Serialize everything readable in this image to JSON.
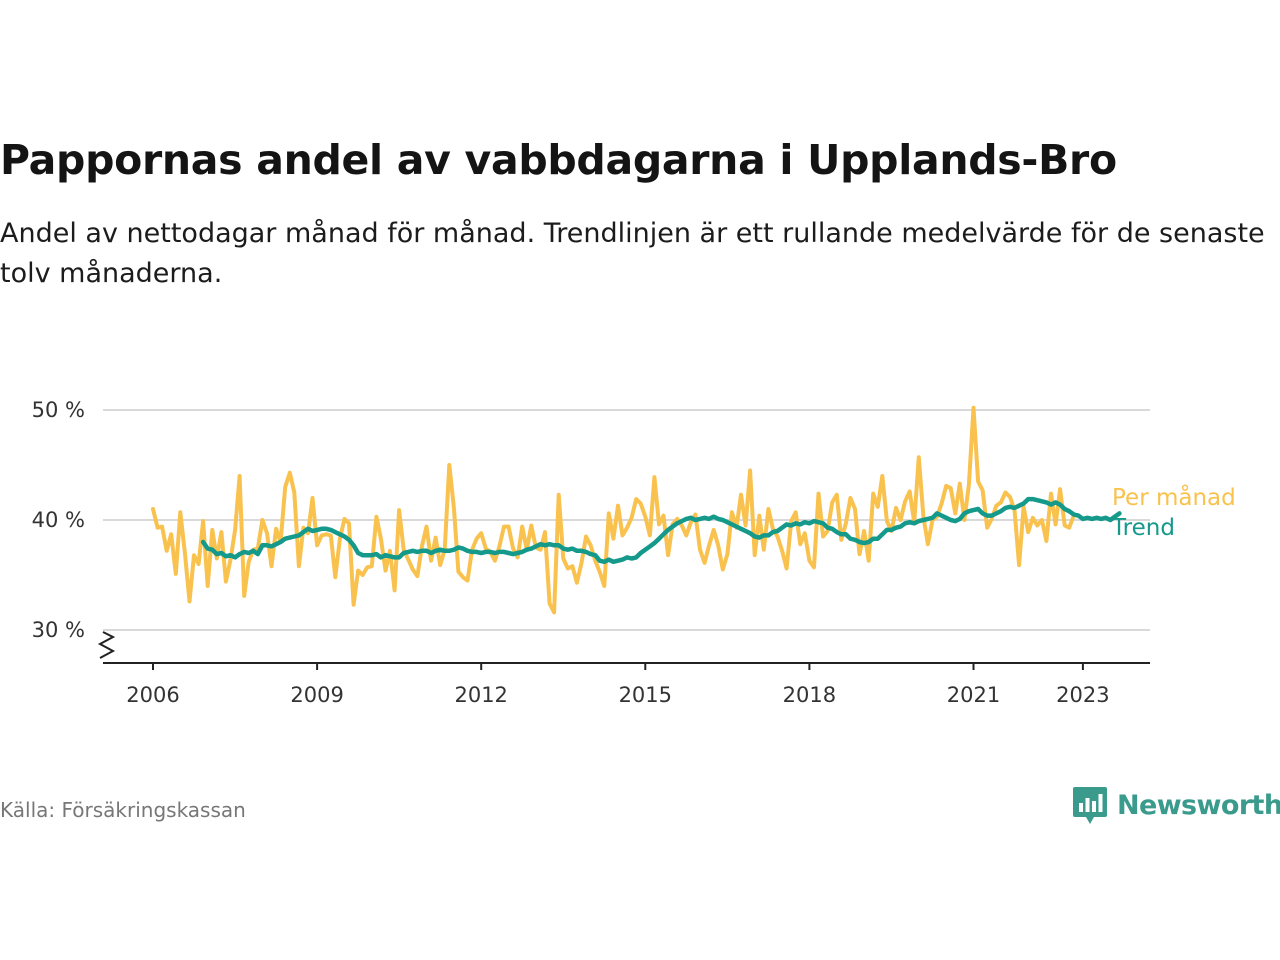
{
  "title": "Pappornas andel av vabbdagarna i Upplands-Bro",
  "subtitle": "Andel av nettodagar månad för månad. Trendlinjen är ett rullande medelvärde för de senaste tolv månaderna.",
  "source": "Källa: Försäkringskassan",
  "brand": "Newsworthy",
  "colors": {
    "monthly": "#f9c24e",
    "trend": "#14998a",
    "brand": "#3a9a8c",
    "grid": "#d9d9d9",
    "axis": "#222222"
  },
  "chart_data": {
    "type": "line",
    "x_start": "2006-01",
    "x_ticks": [
      {
        "year": 2006,
        "label": "2006"
      },
      {
        "year": 2009,
        "label": "2009"
      },
      {
        "year": 2012,
        "label": "2012"
      },
      {
        "year": 2015,
        "label": "2015"
      },
      {
        "year": 2018,
        "label": "2018"
      },
      {
        "year": 2021,
        "label": "2021"
      },
      {
        "year": 2023,
        "label": "2023"
      }
    ],
    "y_ticks": [
      {
        "value": 30,
        "label": "30 %"
      },
      {
        "value": 40,
        "label": "40 %"
      },
      {
        "value": 50,
        "label": "50 %"
      }
    ],
    "ylim": [
      30,
      50
    ],
    "y_axis_break": true,
    "grid": "horizontal",
    "series": [
      {
        "name": "Per månad",
        "color": "#f9c24e",
        "start": "2006-01",
        "values": [
          41.0,
          39.3,
          39.4,
          37.2,
          38.7,
          35.1,
          40.7,
          37.0,
          32.6,
          36.8,
          36.0,
          39.9,
          34.0,
          39.1,
          36.5,
          38.9,
          34.4,
          36.4,
          39.1,
          44.0,
          33.1,
          36.2,
          37.3,
          37.4,
          40.0,
          38.8,
          35.8,
          39.2,
          38.0,
          43.0,
          44.3,
          42.5,
          35.8,
          39.3,
          38.8,
          42.0,
          37.7,
          38.6,
          38.7,
          38.6,
          34.8,
          38.3,
          40.1,
          39.7,
          32.3,
          35.4,
          35.0,
          35.7,
          35.8,
          40.3,
          38.3,
          35.4,
          37.2,
          33.6,
          40.9,
          37.3,
          36.4,
          35.5,
          34.9,
          37.6,
          39.4,
          36.3,
          38.4,
          35.9,
          37.3,
          45.0,
          41.1,
          35.3,
          34.8,
          34.5,
          37.3,
          38.3,
          38.8,
          37.4,
          37.1,
          36.3,
          37.6,
          39.4,
          39.4,
          37.4,
          36.6,
          39.4,
          37.3,
          39.5,
          37.5,
          37.3,
          38.9,
          32.4,
          31.6,
          42.3,
          36.5,
          35.6,
          35.8,
          34.3,
          36.1,
          38.5,
          37.7,
          36.3,
          35.3,
          34.0,
          40.6,
          38.3,
          41.3,
          38.6,
          39.3,
          40.2,
          41.9,
          41.5,
          40.3,
          38.6,
          43.9,
          39.6,
          40.4,
          36.8,
          39.6,
          40.1,
          39.5,
          38.6,
          39.8,
          40.5,
          37.3,
          36.1,
          37.7,
          39.1,
          37.7,
          35.5,
          36.9,
          40.7,
          39.3,
          42.3,
          39.5,
          44.5,
          36.8,
          40.4,
          37.3,
          41.0,
          39.2,
          38.5,
          37.2,
          35.6,
          39.9,
          40.7,
          37.8,
          38.8,
          36.3,
          35.7,
          42.4,
          38.5,
          39.0,
          41.6,
          42.3,
          38.2,
          39.7,
          42.0,
          41.0,
          36.9,
          39.0,
          36.3,
          42.4,
          41.2,
          44.0,
          39.9,
          39.0,
          41.1,
          40.0,
          41.7,
          42.6,
          39.8,
          45.7,
          40.3,
          37.8,
          40.0,
          40.3,
          41.5,
          43.1,
          42.9,
          40.6,
          43.3,
          40.0,
          43.2,
          50.2,
          43.5,
          42.7,
          39.3,
          40.1,
          41.3,
          41.6,
          42.5,
          42.1,
          40.9,
          35.9,
          41.2,
          38.9,
          40.2,
          39.5,
          40.0,
          38.1,
          42.4,
          39.6,
          42.8,
          39.5,
          39.3,
          40.4
        ]
      },
      {
        "name": "Trend",
        "color": "#14998a",
        "start": "2006-12",
        "values": [
          38.0,
          37.4,
          37.3,
          36.9,
          37.0,
          36.7,
          36.8,
          36.6,
          36.9,
          37.1,
          37.0,
          37.2,
          36.9,
          37.7,
          37.7,
          37.6,
          37.8,
          38.0,
          38.3,
          38.4,
          38.5,
          38.6,
          38.9,
          39.2,
          39.0,
          39.1,
          39.2,
          39.2,
          39.1,
          38.9,
          38.7,
          38.5,
          38.2,
          37.7,
          37.0,
          36.8,
          36.8,
          36.8,
          36.9,
          36.6,
          36.8,
          36.7,
          36.6,
          36.6,
          37.0,
          37.1,
          37.2,
          37.1,
          37.2,
          37.2,
          37.0,
          37.2,
          37.3,
          37.2,
          37.2,
          37.3,
          37.5,
          37.4,
          37.2,
          37.1,
          37.1,
          37.0,
          37.1,
          37.1,
          37.0,
          37.1,
          37.1,
          37.0,
          36.9,
          37.0,
          37.1,
          37.3,
          37.4,
          37.6,
          37.8,
          37.7,
          37.8,
          37.7,
          37.7,
          37.4,
          37.3,
          37.4,
          37.2,
          37.2,
          37.1,
          36.9,
          36.8,
          36.3,
          36.2,
          36.4,
          36.2,
          36.3,
          36.4,
          36.6,
          36.5,
          36.6,
          37.0,
          37.3,
          37.6,
          37.9,
          38.3,
          38.7,
          39.1,
          39.4,
          39.7,
          39.9,
          40.1,
          40.2,
          40.0,
          40.1,
          40.2,
          40.1,
          40.3,
          40.1,
          40.0,
          39.8,
          39.6,
          39.4,
          39.2,
          39.0,
          38.8,
          38.5,
          38.4,
          38.6,
          38.6,
          38.9,
          39.0,
          39.3,
          39.6,
          39.5,
          39.7,
          39.6,
          39.8,
          39.7,
          39.9,
          39.8,
          39.7,
          39.3,
          39.2,
          38.9,
          38.7,
          38.7,
          38.3,
          38.2,
          38.0,
          37.9,
          38.0,
          38.3,
          38.3,
          38.7,
          39.1,
          39.1,
          39.3,
          39.4,
          39.7,
          39.8,
          39.7,
          39.9,
          40.0,
          40.1,
          40.2,
          40.6,
          40.4,
          40.2,
          40.0,
          39.9,
          40.1,
          40.6,
          40.8,
          40.9,
          41.0,
          40.6,
          40.4,
          40.4,
          40.6,
          40.8,
          41.1,
          41.2,
          41.1,
          41.3,
          41.5,
          41.9,
          41.9,
          41.8,
          41.7,
          41.6,
          41.4,
          41.6,
          41.4,
          41.0,
          40.8,
          40.5,
          40.4,
          40.1,
          40.2,
          40.1,
          40.2,
          40.1,
          40.2,
          40.0,
          40.3,
          40.6
        ]
      }
    ]
  }
}
